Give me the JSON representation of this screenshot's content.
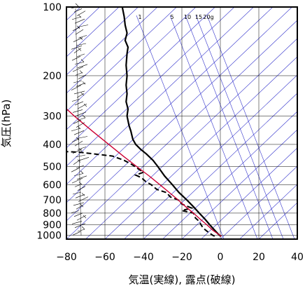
{
  "chart_data": {
    "type": "line",
    "title": "",
    "xlabel": "気温(実線), 露点(破線)",
    "ylabel": "気圧(hPa)",
    "xlim": [
      -80,
      40
    ],
    "ylim": [
      1040,
      100
    ],
    "y_scale": "log",
    "grid": true,
    "x_ticks": [
      -80,
      -60,
      -40,
      -20,
      0,
      20,
      40
    ],
    "x_tick_labels": [
      "−80",
      "−60",
      "−40",
      "−20",
      "0",
      "20",
      "40"
    ],
    "y_ticks": [
      100,
      200,
      300,
      400,
      500,
      600,
      700,
      800,
      900,
      1000
    ],
    "y_tick_labels": [
      "100",
      "200",
      "300",
      "400",
      "500",
      "600",
      "700",
      "800",
      "900",
      "1000"
    ],
    "mixing_ratio_labels": [
      "1",
      "5",
      "10",
      "15",
      "20g"
    ],
    "colors": {
      "temperature": "#000000",
      "dewpoint": "#000000",
      "isotherm": "#3333cc",
      "parcel": "#cc0033",
      "wind": "#000000"
    },
    "series": [
      {
        "role": "temperature",
        "style": "solid",
        "points": [
          {
            "p": 1010,
            "t": 0.5
          },
          {
            "p": 1000,
            "t": -0.5
          },
          {
            "p": 950,
            "t": -3
          },
          {
            "p": 900,
            "t": -5.5
          },
          {
            "p": 850,
            "t": -8
          },
          {
            "p": 800,
            "t": -11
          },
          {
            "p": 750,
            "t": -14
          },
          {
            "p": 700,
            "t": -17.5
          },
          {
            "p": 650,
            "t": -21.5
          },
          {
            "p": 600,
            "t": -25
          },
          {
            "p": 550,
            "t": -29
          },
          {
            "p": 500,
            "t": -32.5
          },
          {
            "p": 470,
            "t": -35
          },
          {
            "p": 440,
            "t": -38.5
          },
          {
            "p": 420,
            "t": -41.5
          },
          {
            "p": 400,
            "t": -44
          },
          {
            "p": 380,
            "t": -45.5
          },
          {
            "p": 350,
            "t": -46.5
          },
          {
            "p": 330,
            "t": -47.5
          },
          {
            "p": 300,
            "t": -48.5
          },
          {
            "p": 280,
            "t": -48
          },
          {
            "p": 260,
            "t": -49
          },
          {
            "p": 240,
            "t": -48.5
          },
          {
            "p": 220,
            "t": -49
          },
          {
            "p": 200,
            "t": -48.5
          },
          {
            "p": 180,
            "t": -49
          },
          {
            "p": 160,
            "t": -48.5
          },
          {
            "p": 150,
            "t": -48
          },
          {
            "p": 140,
            "t": -49.5
          },
          {
            "p": 130,
            "t": -48.5
          },
          {
            "p": 120,
            "t": -49.5
          },
          {
            "p": 110,
            "t": -50
          },
          {
            "p": 100,
            "t": -51
          }
        ]
      },
      {
        "role": "dewpoint",
        "style": "dashed",
        "points": [
          {
            "p": 1010,
            "t": -3
          },
          {
            "p": 1000,
            "t": -4
          },
          {
            "p": 960,
            "t": -7
          },
          {
            "p": 930,
            "t": -9
          },
          {
            "p": 900,
            "t": -10
          },
          {
            "p": 870,
            "t": -11
          },
          {
            "p": 840,
            "t": -13
          },
          {
            "p": 800,
            "t": -14
          },
          {
            "p": 780,
            "t": -20
          },
          {
            "p": 760,
            "t": -15
          },
          {
            "p": 730,
            "t": -20
          },
          {
            "p": 700,
            "t": -22
          },
          {
            "p": 680,
            "t": -26
          },
          {
            "p": 650,
            "t": -28
          },
          {
            "p": 630,
            "t": -33
          },
          {
            "p": 600,
            "t": -36
          },
          {
            "p": 580,
            "t": -39
          },
          {
            "p": 560,
            "t": -41
          },
          {
            "p": 545,
            "t": -44
          },
          {
            "p": 530,
            "t": -40
          },
          {
            "p": 510,
            "t": -43
          },
          {
            "p": 490,
            "t": -46
          },
          {
            "p": 470,
            "t": -50
          },
          {
            "p": 450,
            "t": -56
          },
          {
            "p": 440,
            "t": -66
          },
          {
            "p": 433,
            "t": -73
          },
          {
            "p": 430,
            "t": -80
          }
        ]
      },
      {
        "role": "parcel",
        "style": "solid",
        "points": [
          {
            "p": 1010,
            "t": 0.5
          },
          {
            "p": 950,
            "t": -4
          },
          {
            "p": 900,
            "t": -7
          },
          {
            "p": 850,
            "t": -10.5
          },
          {
            "p": 800,
            "t": -14
          },
          {
            "p": 750,
            "t": -18
          },
          {
            "p": 700,
            "t": -22
          },
          {
            "p": 650,
            "t": -26.5
          },
          {
            "p": 600,
            "t": -31.5
          },
          {
            "p": 550,
            "t": -37
          },
          {
            "p": 500,
            "t": -43.5
          },
          {
            "p": 450,
            "t": -50.5
          },
          {
            "p": 400,
            "t": -58
          },
          {
            "p": 350,
            "t": -66.5
          },
          {
            "p": 300,
            "t": -76
          },
          {
            "p": 265,
            "t": -83
          }
        ]
      }
    ]
  }
}
